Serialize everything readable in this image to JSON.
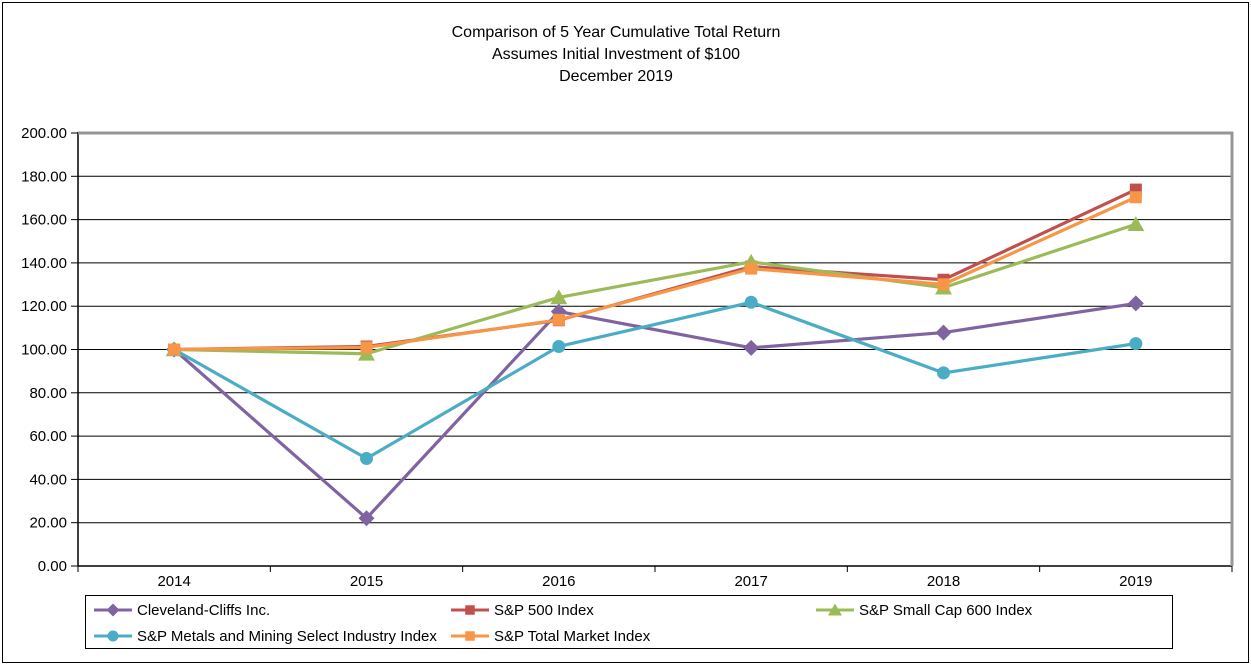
{
  "title": {
    "line1": "Comparison of 5 Year Cumulative Total Return",
    "line2": "Assumes Initial Investment of $100",
    "line3": "December 2019"
  },
  "chart_data": {
    "type": "line",
    "x": [
      "2014",
      "2015",
      "2016",
      "2017",
      "2018",
      "2019"
    ],
    "series": [
      {
        "name": "Cleveland-Cliffs Inc.",
        "color": "#8064A2",
        "marker": "diamond",
        "values": [
          100.0,
          22.03,
          117.52,
          100.77,
          107.82,
          121.29
        ]
      },
      {
        "name": "S&P 500 Index",
        "color": "#C0504D",
        "marker": "square",
        "values": [
          100.0,
          101.38,
          113.51,
          138.29,
          132.23,
          173.86
        ]
      },
      {
        "name": "S&P Small Cap 600 Index",
        "color": "#9BBB59",
        "marker": "triangle",
        "values": [
          100.0,
          98.03,
          124.06,
          140.48,
          128.56,
          157.85
        ]
      },
      {
        "name": "S&P Metals and Mining Select Industry Index",
        "color": "#4BACC6",
        "marker": "circle",
        "values": [
          100.0,
          49.65,
          101.4,
          121.82,
          89.19,
          102.72
        ]
      },
      {
        "name": "S&P Total Market Index",
        "color": "#F79646",
        "marker": "square",
        "values": [
          100.0,
          100.94,
          113.71,
          137.36,
          130.09,
          170.32
        ]
      }
    ],
    "ylim": [
      0,
      200
    ],
    "y_tick_step": 20,
    "y_tick_labels": [
      "0.00",
      "20.00",
      "40.00",
      "60.00",
      "80.00",
      "100.00",
      "120.00",
      "140.00",
      "160.00",
      "180.00",
      "200.00"
    ],
    "grid": true,
    "legend_position": "bottom"
  },
  "style": {
    "grid_color": "#000000",
    "axis_color": "#000000",
    "plot_border_color": "#969696",
    "text_color": "#000000"
  }
}
